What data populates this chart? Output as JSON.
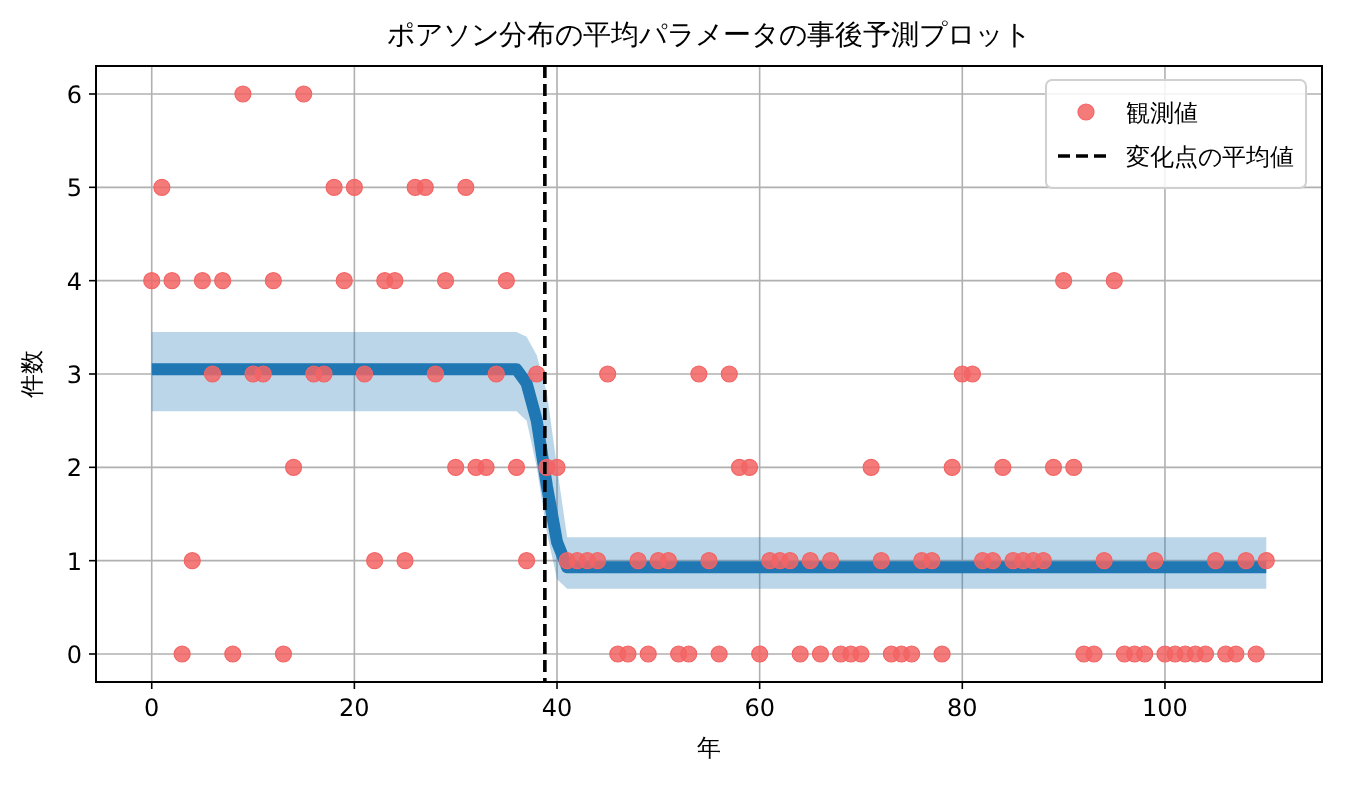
{
  "chart_data": {
    "type": "scatter",
    "title": "ポアソン分布の平均パラメータの事後予測プロット",
    "xlabel": "年",
    "ylabel": "件数",
    "xlim": [
      -5.5,
      115.5
    ],
    "ylim": [
      -0.3,
      6.3
    ],
    "xticks": [
      0,
      20,
      40,
      60,
      80,
      100
    ],
    "yticks": [
      0,
      1,
      2,
      3,
      4,
      5,
      6
    ],
    "grid": true,
    "legend": "top right",
    "series": [
      {
        "name": "観測値",
        "marker": "circle",
        "color": "#f36464",
        "x": [
          0,
          1,
          2,
          3,
          4,
          5,
          6,
          7,
          8,
          9,
          10,
          11,
          12,
          13,
          14,
          15,
          16,
          17,
          18,
          19,
          20,
          21,
          22,
          23,
          24,
          25,
          26,
          27,
          28,
          29,
          30,
          31,
          32,
          33,
          34,
          35,
          36,
          37,
          38,
          39,
          40,
          41,
          42,
          43,
          44,
          45,
          46,
          47,
          48,
          49,
          50,
          51,
          52,
          53,
          54,
          55,
          56,
          57,
          58,
          59,
          60,
          61,
          62,
          63,
          64,
          65,
          66,
          67,
          68,
          69,
          70,
          71,
          72,
          73,
          74,
          75,
          76,
          77,
          78,
          79,
          80,
          81,
          82,
          83,
          84,
          85,
          86,
          87,
          88,
          89,
          90,
          91,
          92,
          93,
          94,
          95,
          96,
          97,
          98,
          99,
          100,
          101,
          102,
          103,
          104,
          105,
          106,
          107,
          108,
          109,
          110
        ],
        "values": [
          4,
          5,
          4,
          0,
          1,
          4,
          3,
          4,
          0,
          6,
          3,
          3,
          4,
          0,
          2,
          6,
          3,
          3,
          5,
          4,
          5,
          3,
          1,
          4,
          4,
          1,
          5,
          5,
          3,
          4,
          2,
          5,
          2,
          2,
          3,
          4,
          2,
          1,
          3,
          2,
          2,
          1,
          1,
          1,
          1,
          3,
          0,
          0,
          1,
          0,
          1,
          1,
          0,
          0,
          3,
          1,
          0,
          3,
          2,
          2,
          0,
          1,
          1,
          1,
          0,
          1,
          0,
          1,
          0,
          0,
          0,
          2,
          1,
          0,
          0,
          0,
          1,
          1,
          0,
          2,
          3,
          3,
          1,
          1,
          2,
          1,
          1,
          1,
          1,
          2,
          4,
          2,
          0,
          0,
          1,
          4,
          0,
          0,
          0,
          1,
          0,
          0,
          0,
          0,
          0,
          1,
          0,
          0,
          1,
          0,
          1
        ]
      },
      {
        "type": "line",
        "marker": "none",
        "color": "#1f77b4",
        "x": [
          0,
          36,
          37,
          38,
          39,
          40,
          41,
          110
        ],
        "values": [
          3.05,
          3.05,
          2.9,
          2.5,
          1.8,
          1.2,
          0.93,
          0.93
        ],
        "lower": [
          2.6,
          2.6,
          2.5,
          2.0,
          1.3,
          0.8,
          0.7,
          0.7
        ],
        "upper": [
          3.45,
          3.45,
          3.4,
          3.2,
          2.8,
          2.0,
          1.25,
          1.25
        ]
      }
    ],
    "ref_lines": [
      {
        "axis": "x",
        "value": 38.8,
        "label": "変化点の平均値",
        "color": "#000000",
        "line_style": "dashed"
      }
    ]
  }
}
